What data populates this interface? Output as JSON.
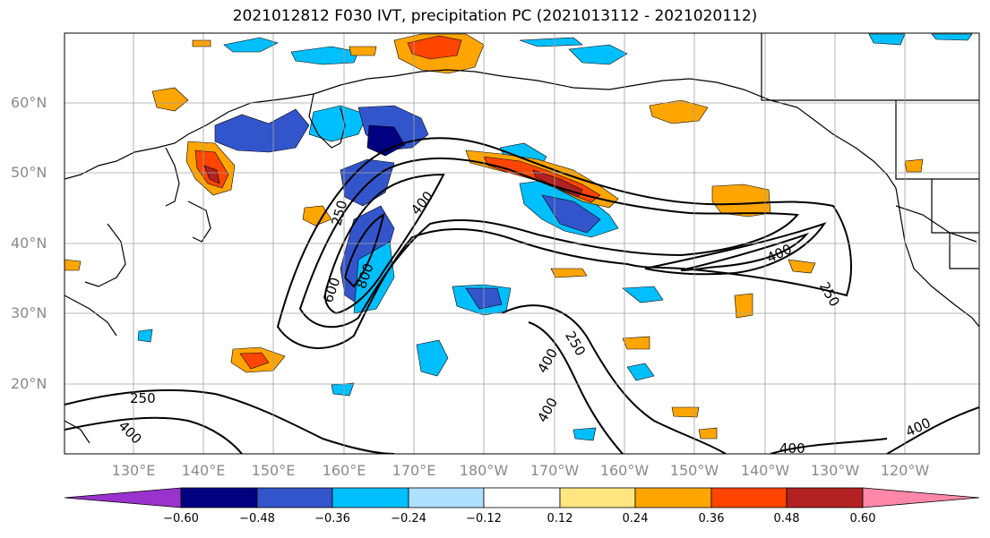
{
  "title": "2021012812 F030 IVT, precipitation PC (2021013112 - 2021020112)",
  "lat_labels": [
    "60°N",
    "50°N",
    "40°N",
    "30°N",
    "20°N"
  ],
  "lon_labels": [
    "130°E",
    "140°E",
    "150°E",
    "160°E",
    "170°E",
    "180°W",
    "170°W",
    "160°W",
    "150°W",
    "140°W",
    "130°W",
    "120°W"
  ],
  "colorbar": {
    "ticks": [
      "−0.60",
      "−0.48",
      "−0.36",
      "−0.24",
      "−0.12",
      "0.12",
      "0.24",
      "0.36",
      "0.48",
      "0.60"
    ],
    "colors": [
      "#9933cc",
      "#000080",
      "#3355cc",
      "#00bfff",
      "#aee0ff",
      "#ffffff",
      "#ffe680",
      "#ffa500",
      "#ff4500",
      "#b22222",
      "#ff88aa"
    ]
  },
  "contour_labels": [
    "250",
    "400",
    "600",
    "800",
    "400",
    "250",
    "400",
    "250",
    "250",
    "400",
    "400",
    "400",
    "400"
  ]
}
